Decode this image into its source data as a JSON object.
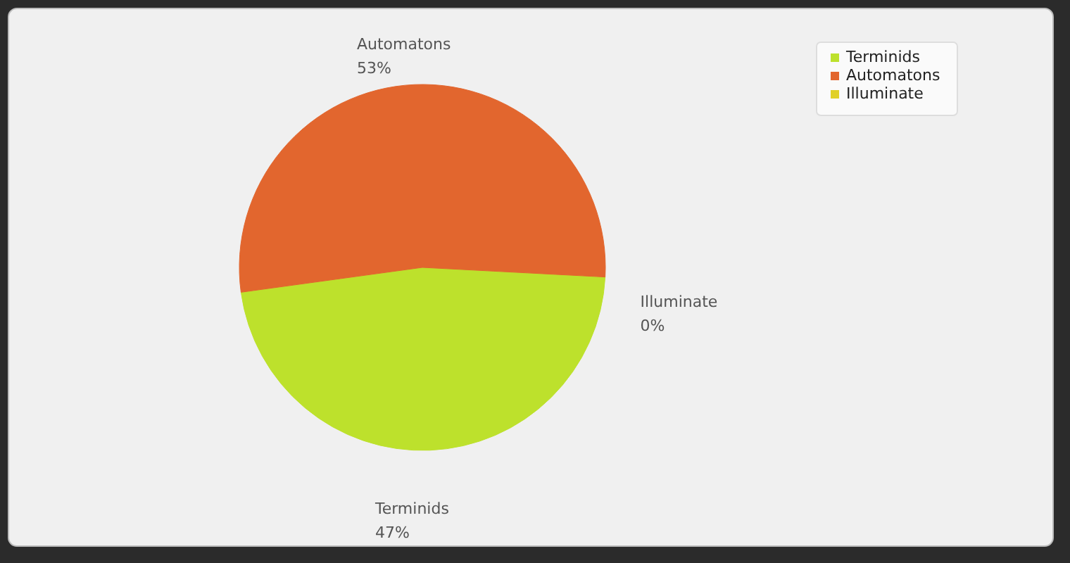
{
  "chart_data": {
    "type": "pie",
    "categories": [
      "Terminids",
      "Automatons",
      "Illuminate"
    ],
    "values": [
      47,
      53,
      0
    ],
    "colors": [
      "#bde12c",
      "#e2662e",
      "#e0d028"
    ],
    "value_labels": [
      "47%",
      "53%",
      "0%"
    ],
    "legend": "top right"
  }
}
